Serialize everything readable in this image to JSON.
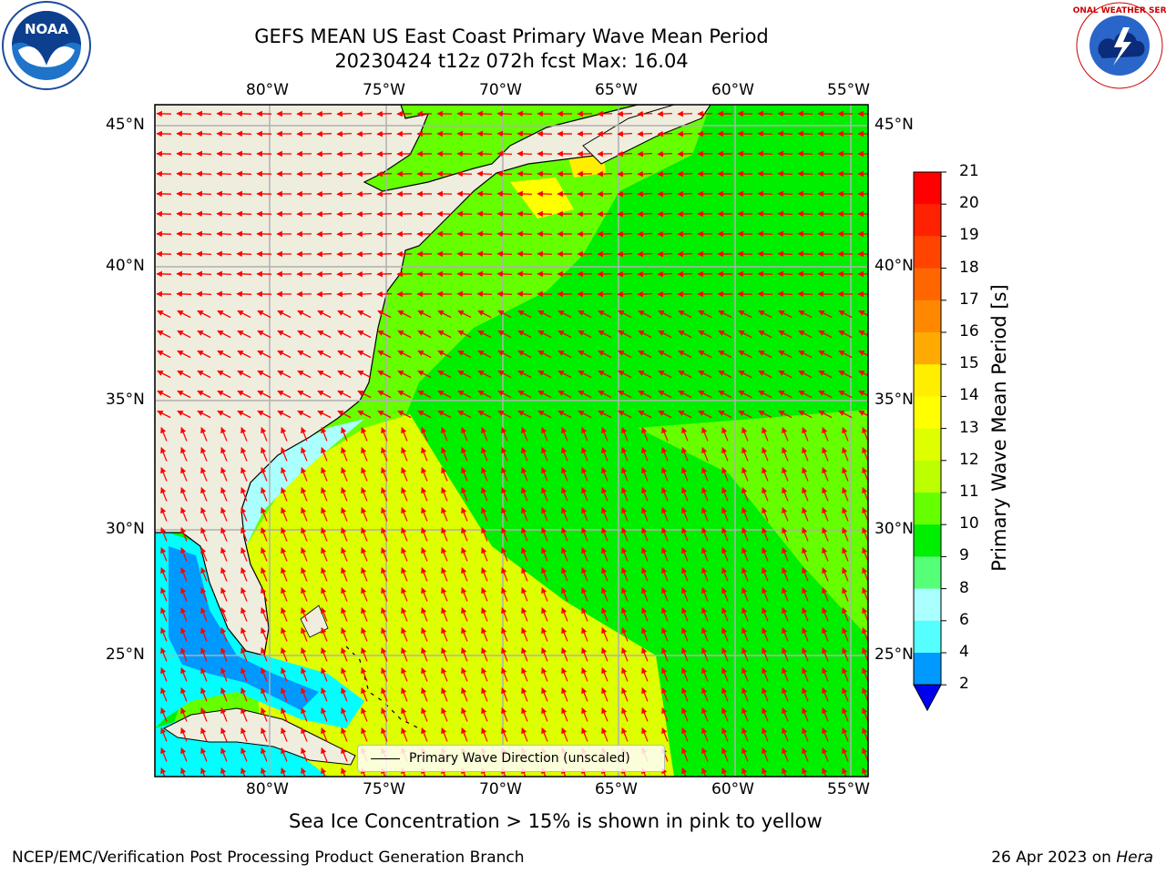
{
  "header": {
    "title_line1": "GEFS MEAN US East Coast Primary Wave Mean Period",
    "title_line2": "20230424 t12z 072h fcst   Max: 16.04"
  },
  "axes": {
    "lon_labels": [
      "80°W",
      "75°W",
      "70°W",
      "65°W",
      "60°W",
      "55°W"
    ],
    "lat_labels": [
      "45°N",
      "40°N",
      "35°N",
      "30°N",
      "25°N"
    ]
  },
  "legend": {
    "label": "Primary Wave Direction (unscaled)",
    "arrow_color": "#ff0000"
  },
  "colorbar": {
    "title": "Primary Wave Mean Period [s]",
    "tick_labels": [
      "21",
      "20",
      "19",
      "18",
      "17",
      "16",
      "15",
      "14",
      "13",
      "12",
      "11",
      "10",
      "9",
      "8",
      "6",
      "4",
      "2"
    ],
    "colors": [
      "#ff0000",
      "#ff2200",
      "#ff4400",
      "#ff6600",
      "#ff8800",
      "#ffaa00",
      "#ffee00",
      "#ffff00",
      "#ddff00",
      "#bbff00",
      "#66ff00",
      "#00ee00",
      "#55ff77",
      "#aaffff",
      "#55ffff",
      "#00ffff",
      "#0099ff"
    ],
    "under_color": "#0000ee"
  },
  "map": {
    "land_color": "#efedde",
    "grid_color": "#b0b0b0",
    "field_colors": {
      "period_8": "#55ffff",
      "period_6": "#00ffff",
      "period_4": "#0099ff",
      "period_2_under": "#0000ee",
      "period_10": "#00ee00",
      "period_11": "#66ff00",
      "period_12": "#bbff00",
      "period_13": "#ddff00",
      "period_14": "#ffff00",
      "period_9": "#55ff77"
    }
  },
  "subtitle": "Sea Ice Concentration > 15% is shown in pink to yellow",
  "footer": {
    "left": "NCEP/EMC/Verification Post Processing Product Generation Branch",
    "right_date": "26 Apr 2023 on ",
    "right_machine": "Hera"
  },
  "logos": {
    "noaa_text": "NOAA",
    "nws_text": "NATIONAL WEATHER SERVICE",
    "noaa_ring_text": "NATIONAL OCEANIC AND ATMOSPHERIC ADMINISTRATION"
  }
}
